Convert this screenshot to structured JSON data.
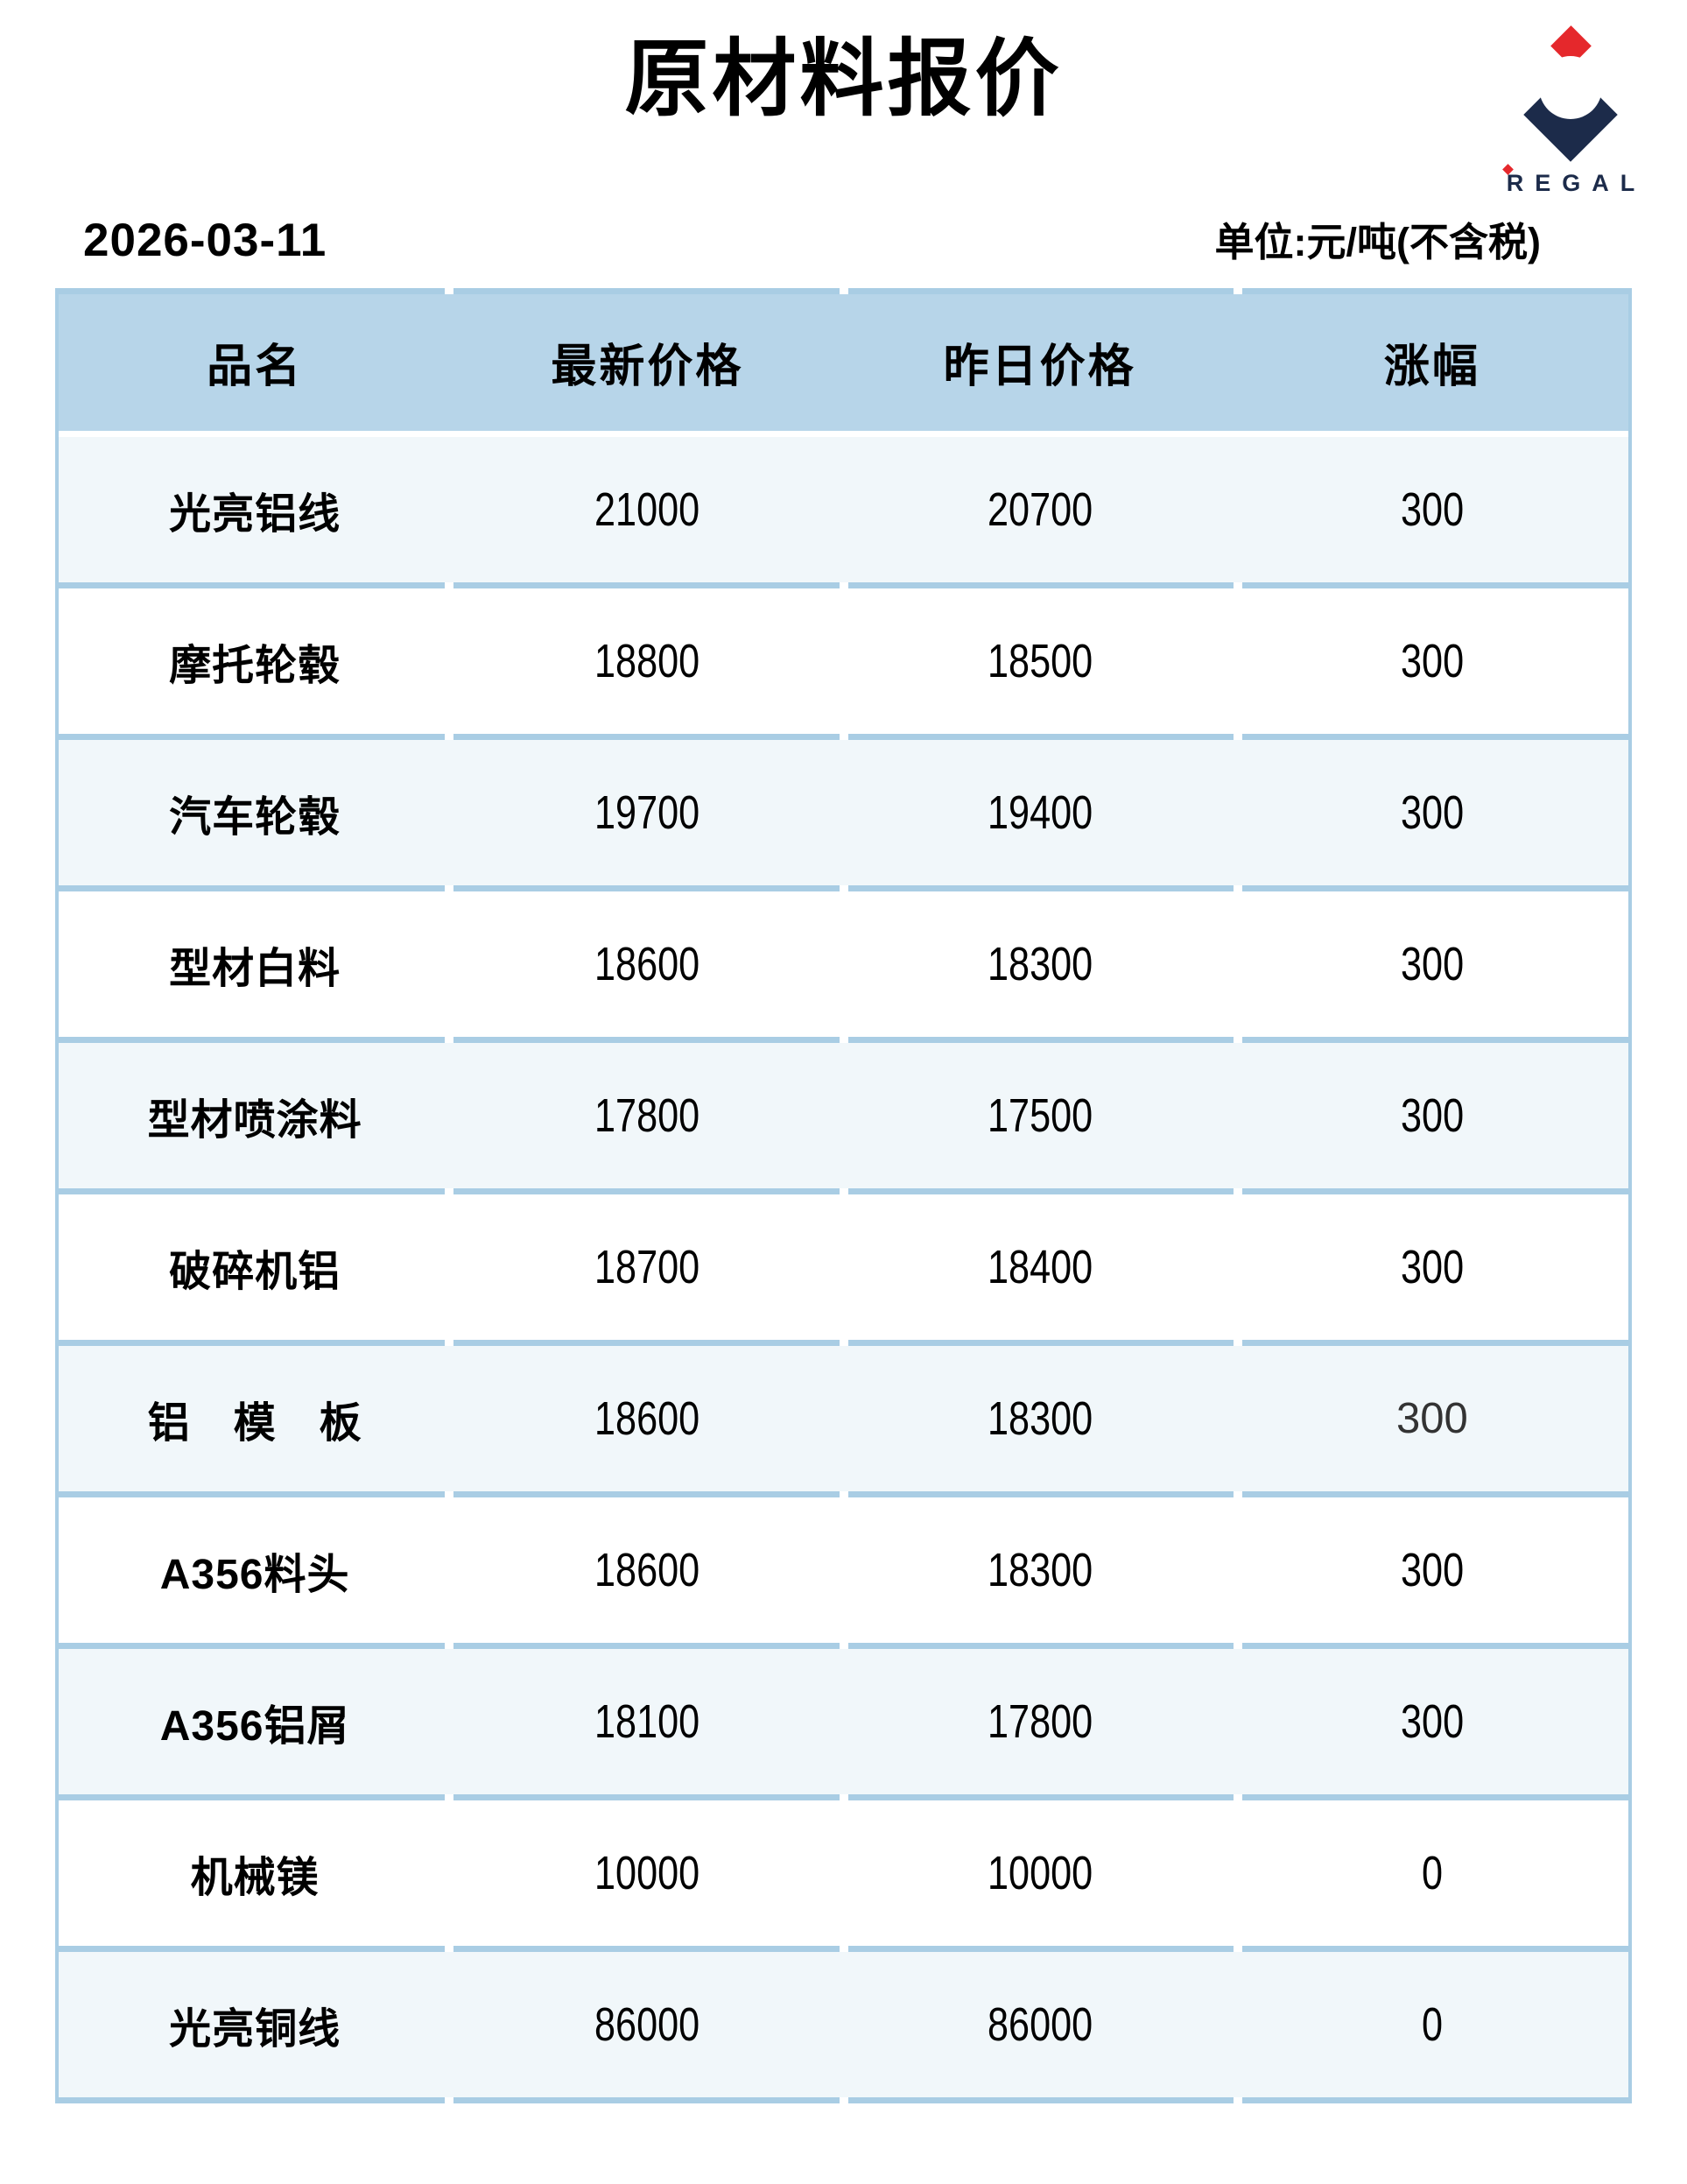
{
  "page": {
    "title": "原材料报价",
    "date": "2026-03-11",
    "unit_label": "单位:元/吨(不含税)",
    "logo": {
      "brand": "REGAL"
    }
  },
  "table": {
    "columns": [
      "品名",
      "最新价格",
      "昨日价格",
      "涨幅"
    ],
    "rows": [
      {
        "name": "光亮铝线",
        "latest": "21000",
        "yesterday": "20700",
        "change": "300",
        "muted_change": false
      },
      {
        "name": "摩托轮毂",
        "latest": "18800",
        "yesterday": "18500",
        "change": "300",
        "muted_change": false
      },
      {
        "name": "汽车轮毂",
        "latest": "19700",
        "yesterday": "19400",
        "change": "300",
        "muted_change": false
      },
      {
        "name": "型材白料",
        "latest": "18600",
        "yesterday": "18300",
        "change": "300",
        "muted_change": false
      },
      {
        "name": "型材喷涂料",
        "latest": "17800",
        "yesterday": "17500",
        "change": "300",
        "muted_change": false
      },
      {
        "name": "破碎机铝",
        "latest": "18700",
        "yesterday": "18400",
        "change": "300",
        "muted_change": false
      },
      {
        "name": "铝　模　板",
        "latest": "18600",
        "yesterday": "18300",
        "change": "300",
        "muted_change": true
      },
      {
        "name": "A356料头",
        "latest": "18600",
        "yesterday": "18300",
        "change": "300",
        "muted_change": false
      },
      {
        "name": "A356铝屑",
        "latest": "18100",
        "yesterday": "17800",
        "change": "300",
        "muted_change": false
      },
      {
        "name": "机械镁",
        "latest": "10000",
        "yesterday": "10000",
        "change": "0",
        "muted_change": false
      },
      {
        "name": "光亮铜线",
        "latest": "86000",
        "yesterday": "86000",
        "change": "0",
        "muted_change": false
      }
    ]
  },
  "colors": {
    "header_bg": "#b7d5e9",
    "separator": "#a9cde4",
    "row_tint": "#f1f7fa",
    "logo_navy": "#1c2b4a",
    "logo_red": "#e5282c"
  }
}
